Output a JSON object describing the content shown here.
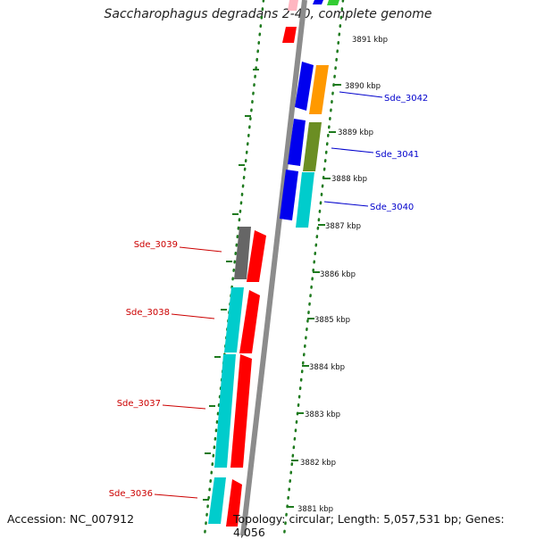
{
  "title": "Saccharophagus degradans 2-40, complete genome",
  "footer": {
    "accession": "Accession: NC_007912",
    "topology": "Topology: circular; Length: 5,057,531 bp; Genes: 4,056"
  },
  "colors": {
    "backbone": "#8c8c8c",
    "ticks": "#1e7a1e",
    "forward_label": "#0000cc",
    "reverse_label": "#cc0000",
    "blue": "#0000ee",
    "orange": "#ff9900",
    "olive": "#6b8e23",
    "cyan": "#00cccc",
    "red": "#ff0000",
    "gray": "#666666",
    "pink": "#ffb6c1",
    "green": "#33cc33"
  },
  "kbp_labels": [
    {
      "text": "3891 kbp"
    },
    {
      "text": "3890 kbp"
    },
    {
      "text": "3889 kbp"
    },
    {
      "text": "3888 kbp"
    },
    {
      "text": "3887 kbp"
    },
    {
      "text": "3886 kbp"
    },
    {
      "text": "3885 kbp"
    },
    {
      "text": "3884 kbp"
    },
    {
      "text": "3883 kbp"
    },
    {
      "text": "3882 kbp"
    },
    {
      "text": "3881 kbp"
    }
  ],
  "gene_labels": [
    {
      "text": "Sde_3042",
      "strand": "forward"
    },
    {
      "text": "Sde_3041",
      "strand": "forward"
    },
    {
      "text": "Sde_3040",
      "strand": "forward"
    },
    {
      "text": "Sde_3039",
      "strand": "reverse"
    },
    {
      "text": "Sde_3038",
      "strand": "reverse"
    },
    {
      "text": "Sde_3037",
      "strand": "reverse"
    },
    {
      "text": "Sde_3036",
      "strand": "reverse"
    }
  ]
}
